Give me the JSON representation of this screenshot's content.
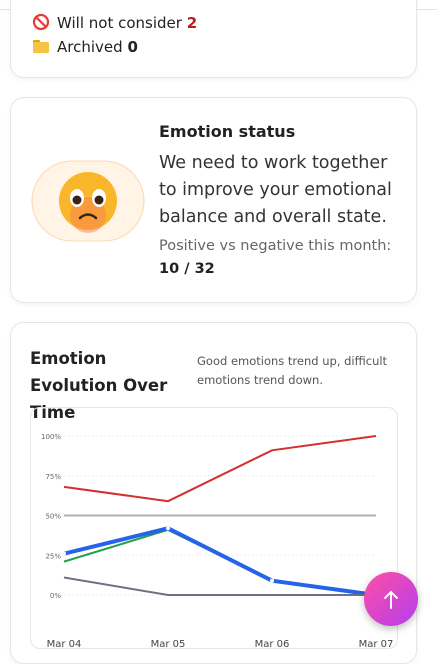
{
  "status_list": [
    {
      "label": "Will not consider",
      "count": "2"
    },
    {
      "label": "Archived",
      "count": "0"
    }
  ],
  "emotion_status": {
    "title": "Emotion status",
    "message": "We need to work together to improve your emotional balance and overall state.",
    "ratio_label": "Positive vs negative this month:",
    "ratio": "10 / 32"
  },
  "chart_data": {
    "type": "line",
    "title": "Emotion Evolution Over Time",
    "subtitle": "Good emotions trend up, difficult emotions trend down.",
    "categories": [
      "Mar 04",
      "Mar 05",
      "Mar 06",
      "Mar 07"
    ],
    "series": [
      {
        "color": "#d32f2f",
        "values": [
          68,
          59,
          91,
          100
        ]
      },
      {
        "color": "#b0b0b0",
        "values": [
          50,
          50,
          50,
          50
        ]
      },
      {
        "color": "#22a04b",
        "values": [
          21,
          41,
          9,
          0
        ]
      },
      {
        "color": "#2563eb",
        "values": [
          26,
          42,
          9,
          0
        ]
      },
      {
        "color": "#6b7280",
        "values": [
          11,
          0,
          0,
          0
        ]
      }
    ],
    "ylim": [
      0,
      100
    ],
    "yticks": [
      {
        "value": 0,
        "label": "0%"
      },
      {
        "value": 25,
        "label": "25%"
      },
      {
        "value": 50,
        "label": "50%"
      },
      {
        "value": 75,
        "label": "75%"
      },
      {
        "value": 100,
        "label": "100%"
      }
    ],
    "grid": true
  }
}
